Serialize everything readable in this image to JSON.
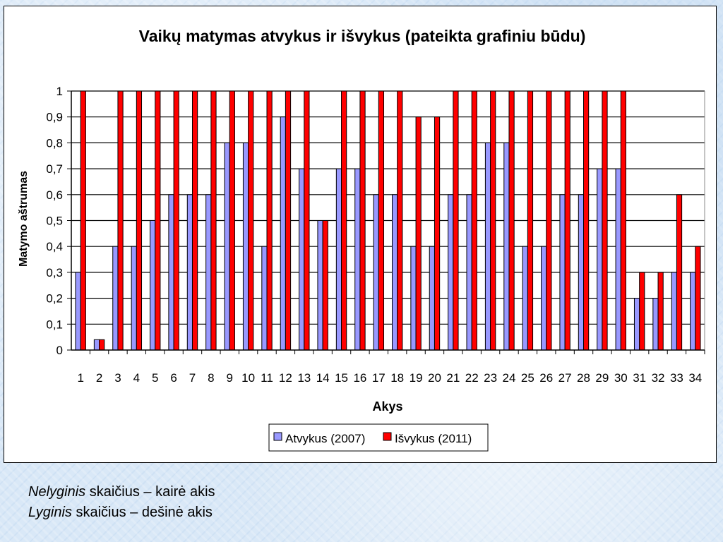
{
  "chart_data": {
    "type": "bar",
    "title": "Vaikų matymas atvykus ir išvykus (pateikta grafiniu būdu)",
    "xlabel": "Akys",
    "ylabel": "Matymo aštrumas",
    "ylim": [
      0,
      1
    ],
    "yticks": [
      "0",
      "0,1",
      "0,2",
      "0,3",
      "0,4",
      "0,5",
      "0,6",
      "0,7",
      "0,8",
      "0,9",
      "1"
    ],
    "grid": true,
    "legend_position": "bottom",
    "categories": [
      "1",
      "2",
      "3",
      "4",
      "5",
      "6",
      "7",
      "8",
      "9",
      "10",
      "11",
      "12",
      "13",
      "14",
      "15",
      "16",
      "17",
      "18",
      "19",
      "20",
      "21",
      "22",
      "23",
      "24",
      "25",
      "26",
      "27",
      "28",
      "29",
      "30",
      "31",
      "32",
      "33",
      "34"
    ],
    "series": [
      {
        "name": "Atvykus (2007)",
        "color": "#9999ff",
        "values": [
          0.3,
          0.04,
          0.4,
          0.4,
          0.5,
          0.6,
          0.6,
          0.6,
          0.8,
          0.8,
          0.4,
          0.9,
          0.7,
          0.5,
          0.7,
          0.7,
          0.6,
          0.6,
          0.4,
          0.4,
          0.6,
          0.6,
          0.8,
          0.8,
          0.4,
          0.4,
          0.6,
          0.6,
          0.7,
          0.7,
          0.2,
          0.2,
          0.3,
          0.3
        ]
      },
      {
        "name": "Išvykus (2011)",
        "color": "#ff0000",
        "values": [
          1,
          0.04,
          1,
          1,
          1,
          1,
          1,
          1,
          1,
          1,
          1,
          1,
          1,
          0.5,
          1,
          1,
          1,
          1,
          0.9,
          0.9,
          1,
          1,
          1,
          1,
          1,
          1,
          1,
          1,
          1,
          1,
          0.3,
          0.3,
          0.6,
          0.4
        ]
      }
    ]
  },
  "captions": {
    "line1_italic": "Nelyginis",
    "line1_rest": " skaičius – kairė akis",
    "line2_italic": "Lyginis",
    "line2_rest": " skaičius – dešinė akis"
  }
}
